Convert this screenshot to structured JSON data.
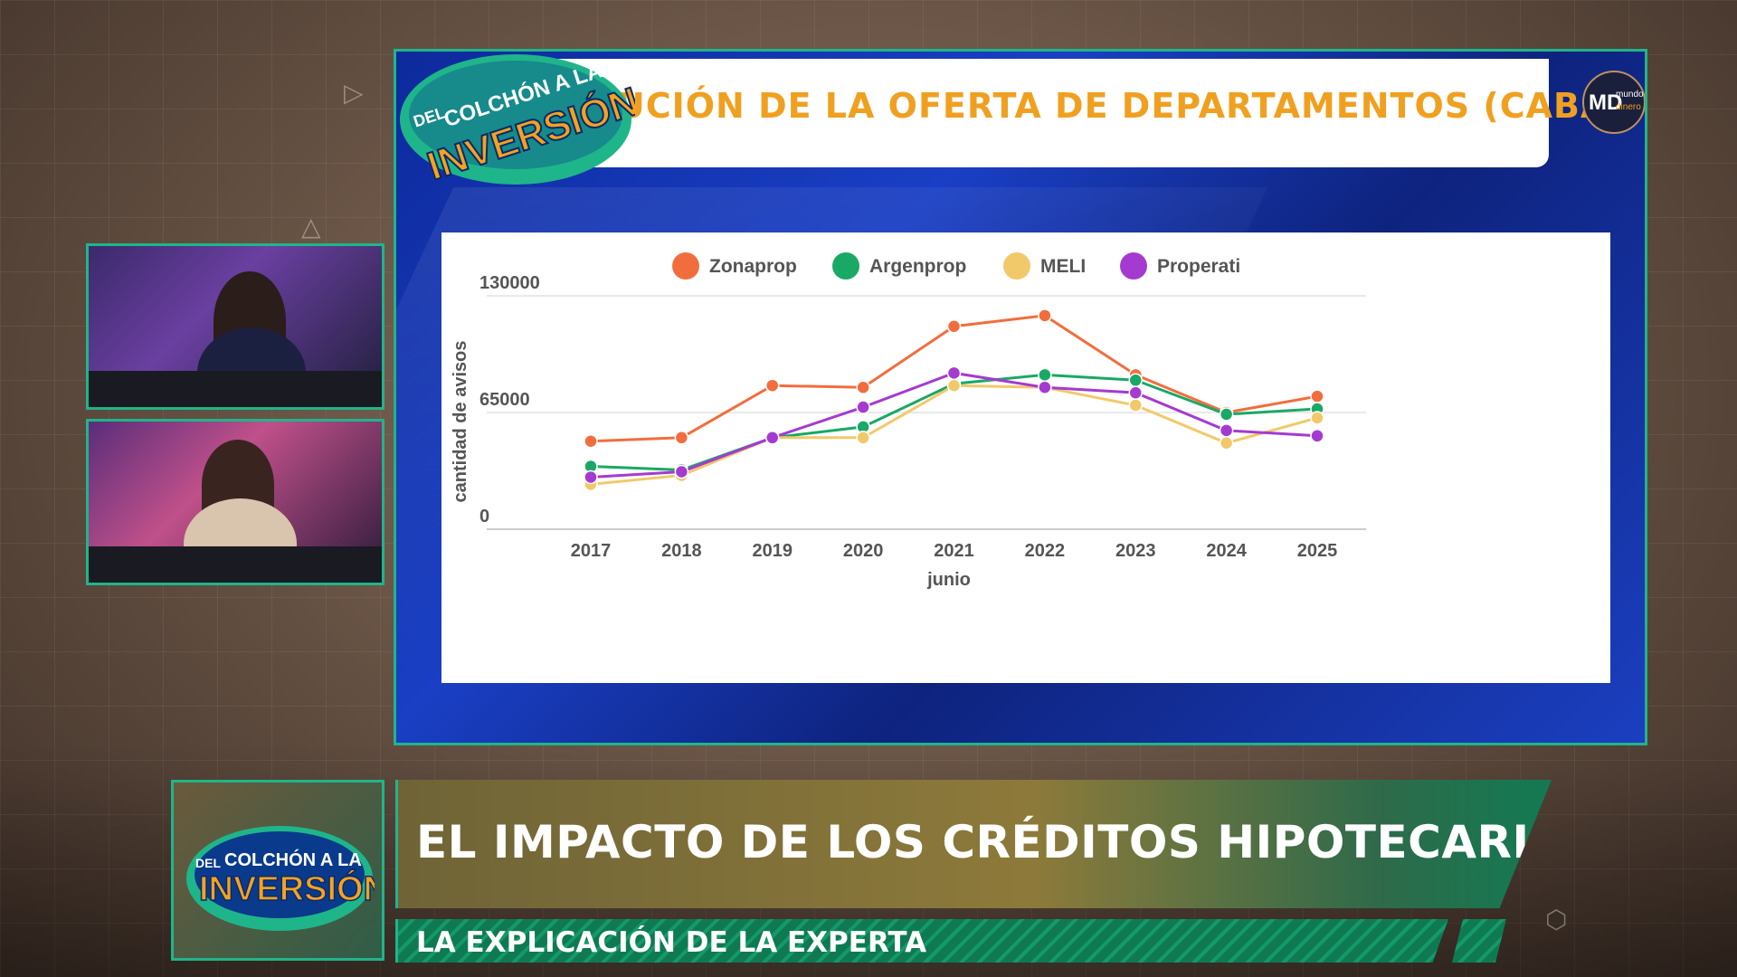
{
  "slide": {
    "title": "EVOLUCIÓN DE LA OFERTA DE DEPARTAMENTOS (CABA)",
    "show_logo": {
      "line1": "DEL",
      "line2": "COLCHÓN A LA",
      "line3": "INVERSIÓN"
    },
    "channel_logo": {
      "mark": "MD",
      "word1": "mundo",
      "word2": "dinero"
    }
  },
  "chart_data": {
    "type": "line",
    "x": [
      "2017",
      "2018",
      "2019",
      "2020",
      "2021",
      "2022",
      "2023",
      "2024",
      "2025"
    ],
    "xlabel": "junio",
    "ylabel": "cantidad de avisos",
    "ylim": [
      0,
      130000
    ],
    "yticks": [
      "0",
      "65000",
      "130000"
    ],
    "grid": true,
    "legend_position": "top",
    "series": [
      {
        "name": "Zonaprop",
        "color": "#f26d3d",
        "values": [
          49000,
          51000,
          80000,
          79000,
          113000,
          119000,
          86000,
          65000,
          74000
        ]
      },
      {
        "name": "Argenprop",
        "color": "#1aa866",
        "values": [
          35000,
          33000,
          51000,
          57000,
          81000,
          86000,
          83000,
          64000,
          67000
        ]
      },
      {
        "name": "MELI",
        "color": "#f2c96a",
        "values": [
          25000,
          30000,
          51000,
          51000,
          80000,
          79000,
          69000,
          48000,
          62000
        ]
      },
      {
        "name": "Properati",
        "color": "#a53ad0",
        "values": [
          29000,
          32000,
          51000,
          68000,
          87000,
          79000,
          76000,
          55000,
          52000
        ]
      }
    ]
  },
  "lower_third": {
    "headline": "EL IMPACTO DE LOS CRÉDITOS HIPOTECARIOS",
    "subheadline": "LA EXPLICACIÓN DE LA EXPERTA"
  }
}
